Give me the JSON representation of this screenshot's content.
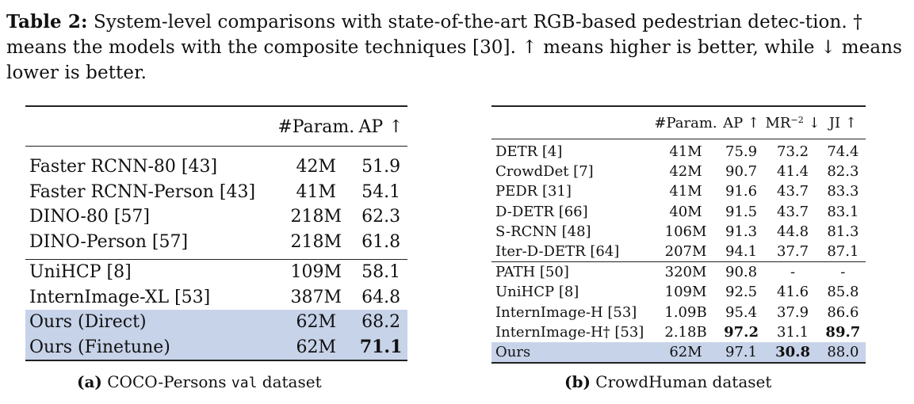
{
  "caption": {
    "label": "Table 2:",
    "text": "System-level comparisons with state-of-the-art RGB-based pedestrian detec-tion. † means the models with the composite techniques [30]. ↑ means higher is better, while ↓ means lower is better."
  },
  "table_a": {
    "headers": [
      "",
      "#Param.",
      "AP ↑"
    ],
    "groups": [
      [
        {
          "name": "Faster RCNN-80 [43]",
          "param": "42M",
          "ap": "51.9"
        },
        {
          "name": "Faster RCNN-Person [43]",
          "param": "41M",
          "ap": "54.1"
        },
        {
          "name": "DINO-80 [57]",
          "param": "218M",
          "ap": "62.3"
        },
        {
          "name": "DINO-Person [57]",
          "param": "218M",
          "ap": "61.8"
        }
      ],
      [
        {
          "name": "UniHCP [8]",
          "param": "109M",
          "ap": "58.1"
        },
        {
          "name": "InternImage-XL [53]",
          "param": "387M",
          "ap": "64.8"
        },
        {
          "name": "Ours (Direct)",
          "param": "62M",
          "ap": "68.2"
        },
        {
          "name": "Ours (Finetune)",
          "param": "62M",
          "ap": "71.1"
        }
      ]
    ],
    "subcaption": {
      "label": "(a)",
      "text_before": "COCO-Persons",
      "mono": "val",
      "text_after": "dataset"
    }
  },
  "table_b": {
    "headers": [
      "",
      "#Param.",
      "AP ↑",
      "MR",
      "−2",
      "↓",
      "JI ↑"
    ],
    "groups": [
      [
        {
          "name": "DETR [4]",
          "param": "41M",
          "ap": "75.9",
          "mr": "73.2",
          "ji": "74.4"
        },
        {
          "name": "CrowdDet [7]",
          "param": "42M",
          "ap": "90.7",
          "mr": "41.4",
          "ji": "82.3"
        },
        {
          "name": "PEDR [31]",
          "param": "41M",
          "ap": "91.6",
          "mr": "43.7",
          "ji": "83.3"
        },
        {
          "name": "D-DETR [66]",
          "param": "40M",
          "ap": "91.5",
          "mr": "43.7",
          "ji": "83.1"
        },
        {
          "name": "S-RCNN [48]",
          "param": "106M",
          "ap": "91.3",
          "mr": "44.8",
          "ji": "81.3"
        },
        {
          "name": "Iter-D-DETR [64]",
          "param": "207M",
          "ap": "94.1",
          "mr": "37.7",
          "ji": "87.1"
        }
      ],
      [
        {
          "name": "PATH [50]",
          "param": "320M",
          "ap": "90.8",
          "mr": "-",
          "ji": "-"
        },
        {
          "name": "UniHCP [8]",
          "param": "109M",
          "ap": "92.5",
          "mr": "41.6",
          "ji": "85.8"
        },
        {
          "name": "InternImage-H [53]",
          "param": "1.09B",
          "ap": "95.4",
          "mr": "37.9",
          "ji": "86.6"
        },
        {
          "name": "InternImage-H† [53]",
          "param": "2.18B",
          "ap": "97.2",
          "mr": "31.1",
          "ji": "89.7"
        },
        {
          "name": "Ours",
          "param": "62M",
          "ap": "97.1",
          "mr": "30.8",
          "ji": "88.0"
        }
      ]
    ],
    "subcaption": {
      "label": "(b)",
      "text": "CrowdHuman dataset"
    }
  }
}
